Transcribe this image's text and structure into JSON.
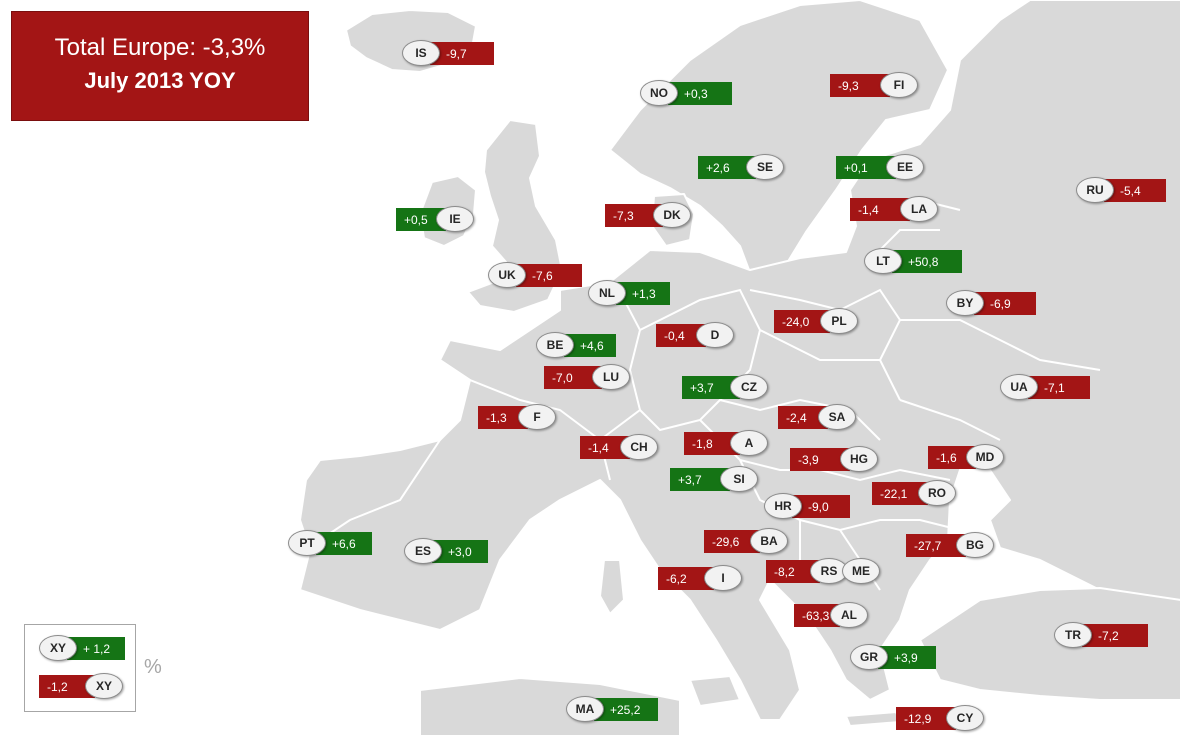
{
  "title": {
    "line1": "Total Europe: -3,3%",
    "line2": "July 2013 YOY"
  },
  "legend": {
    "positive": {
      "code": "XY",
      "value": "+ 1,2"
    },
    "negative": {
      "code": "XY",
      "value": "-1,2"
    },
    "unit": "%"
  },
  "colors": {
    "positive": "#157415",
    "negative": "#a31515",
    "land": "#d9d9d9",
    "sea": "#ffffff"
  },
  "countries": [
    {
      "code": "IS",
      "value": "-9,7"
    },
    {
      "code": "NO",
      "value": "+0,3"
    },
    {
      "code": "FI",
      "value": "-9,3"
    },
    {
      "code": "SE",
      "value": "+2,6"
    },
    {
      "code": "EE",
      "value": "+0,1"
    },
    {
      "code": "RU",
      "value": "-5,4"
    },
    {
      "code": "IE",
      "value": "+0,5"
    },
    {
      "code": "DK",
      "value": "-7,3"
    },
    {
      "code": "LA",
      "value": "-1,4"
    },
    {
      "code": "UK",
      "value": "-7,6"
    },
    {
      "code": "LT",
      "value": "+50,8"
    },
    {
      "code": "NL",
      "value": "+1,3"
    },
    {
      "code": "BY",
      "value": "-6,9"
    },
    {
      "code": "D",
      "value": "-0,4"
    },
    {
      "code": "PL",
      "value": "-24,0"
    },
    {
      "code": "BE",
      "value": "+4,6"
    },
    {
      "code": "LU",
      "value": "-7,0"
    },
    {
      "code": "CZ",
      "value": "+3,7"
    },
    {
      "code": "UA",
      "value": "-7,1"
    },
    {
      "code": "F",
      "value": "-1,3"
    },
    {
      "code": "SA",
      "value": "-2,4"
    },
    {
      "code": "CH",
      "value": "-1,4"
    },
    {
      "code": "A",
      "value": "-1,8"
    },
    {
      "code": "HG",
      "value": "-3,9"
    },
    {
      "code": "MD",
      "value": "-1,6"
    },
    {
      "code": "SI",
      "value": "+3,7"
    },
    {
      "code": "RO",
      "value": "-22,1"
    },
    {
      "code": "HR",
      "value": "-9,0"
    },
    {
      "code": "PT",
      "value": "+6,6"
    },
    {
      "code": "ES",
      "value": "+3,0"
    },
    {
      "code": "BA",
      "value": "-29,6"
    },
    {
      "code": "BG",
      "value": "-27,7"
    },
    {
      "code": "RS",
      "value": "-8,2"
    },
    {
      "code": "ME",
      "value": ""
    },
    {
      "code": "I",
      "value": "-6,2"
    },
    {
      "code": "AL",
      "value": "-63,3"
    },
    {
      "code": "TR",
      "value": "-7,2"
    },
    {
      "code": "GR",
      "value": "+3,9"
    },
    {
      "code": "MA",
      "value": "+25,2"
    },
    {
      "code": "CY",
      "value": "-12,9"
    }
  ]
}
